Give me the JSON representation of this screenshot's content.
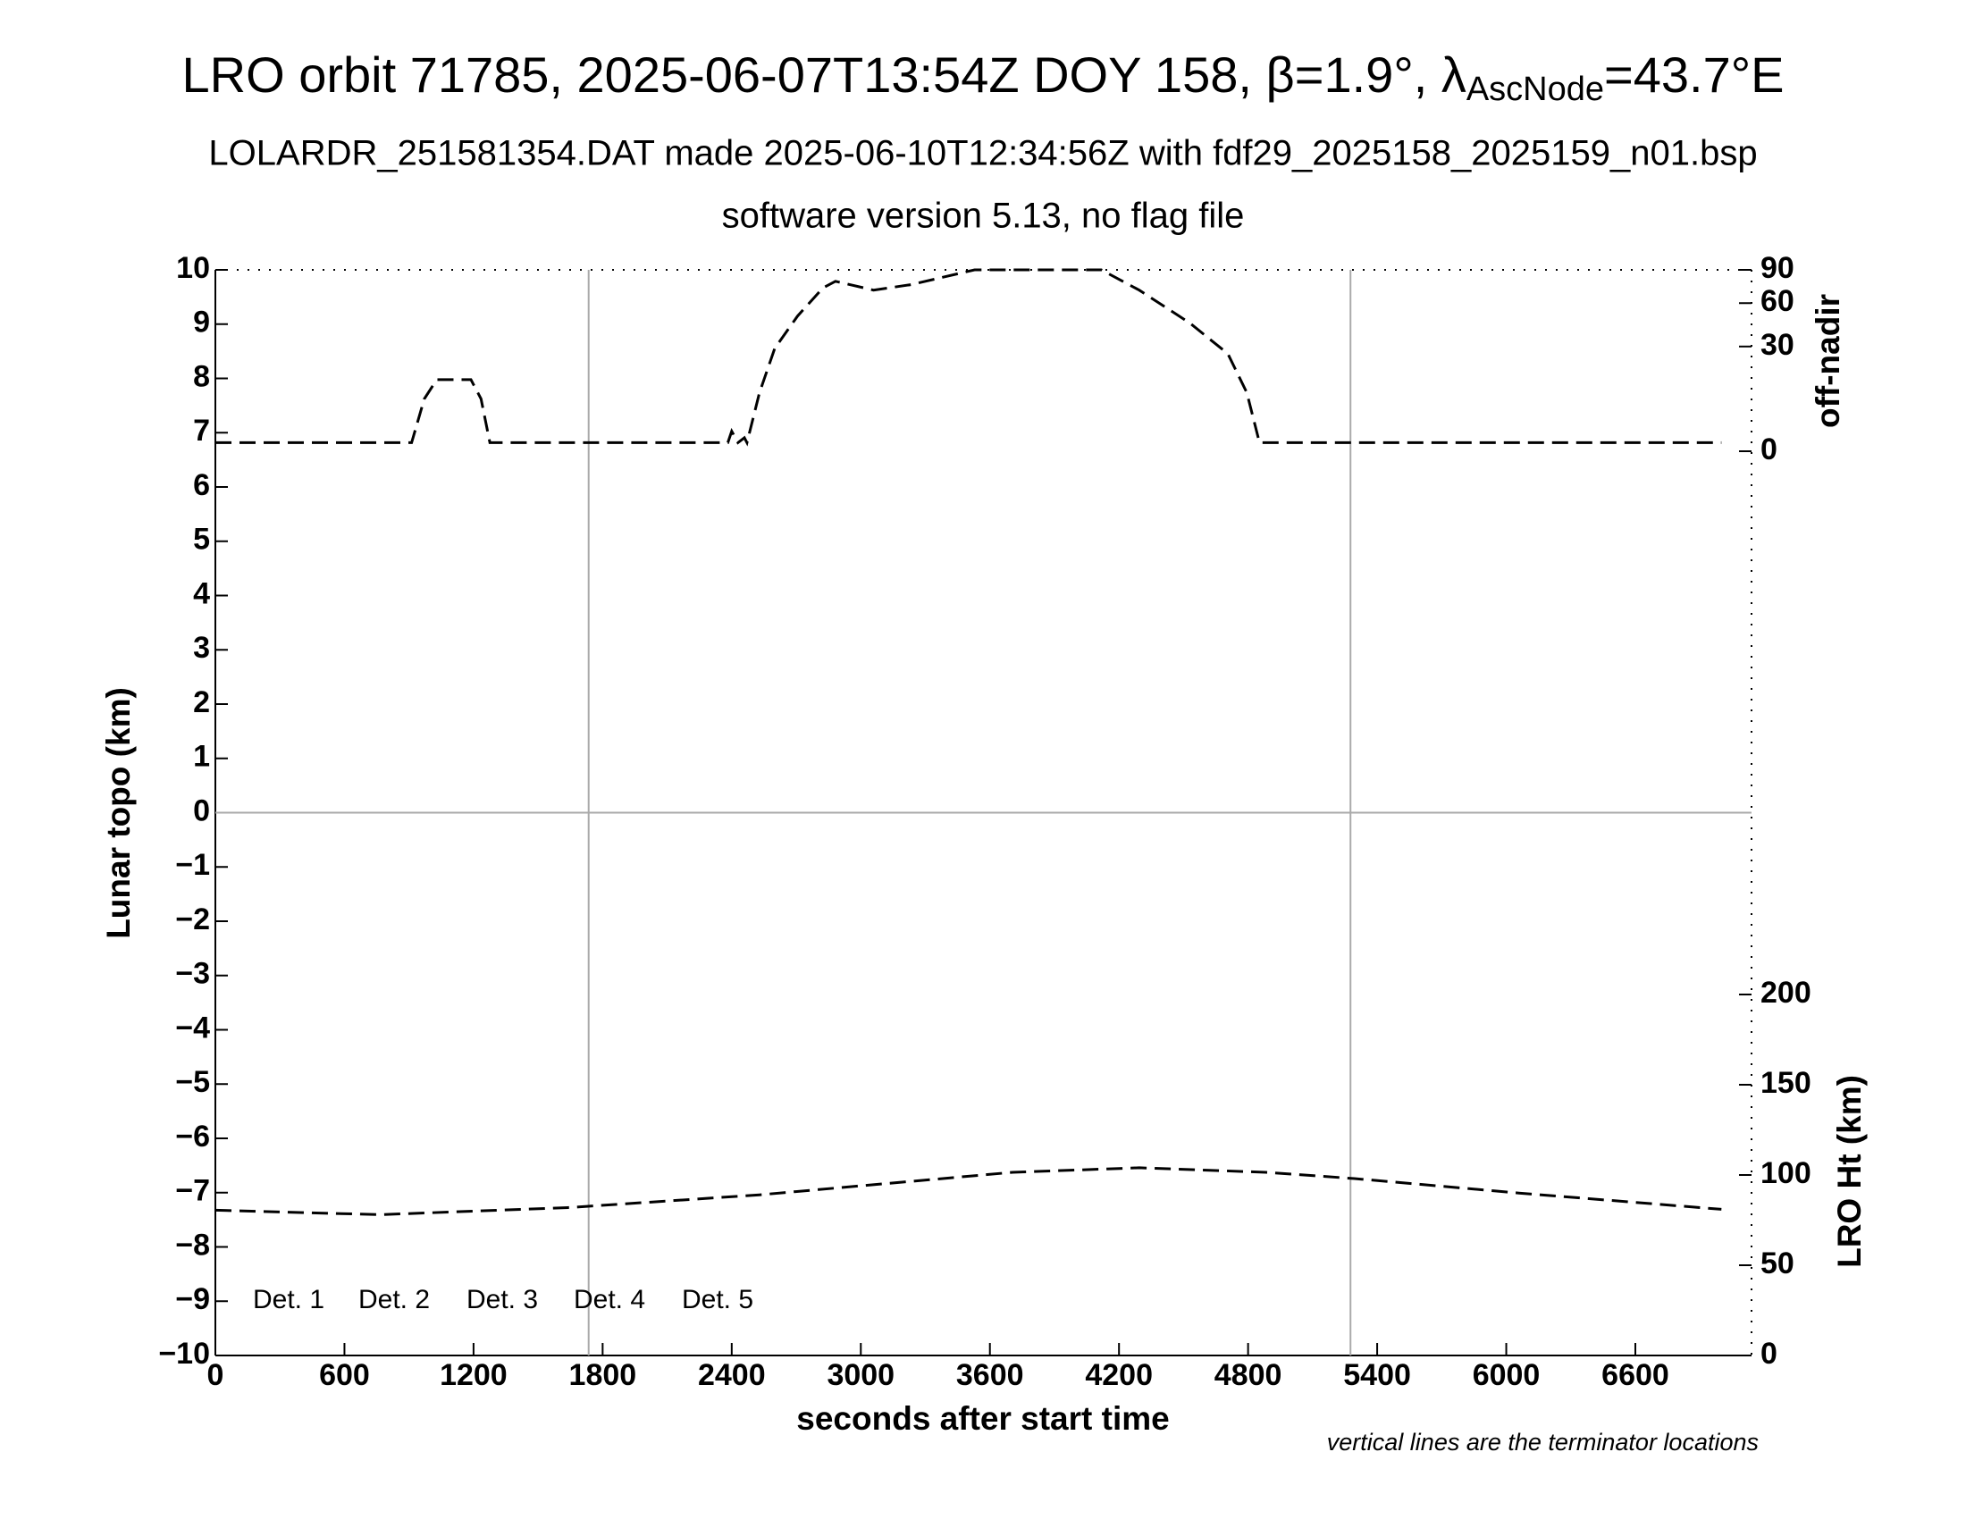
{
  "chart_data": {
    "type": "line",
    "title": [
      "LRO orbit 71785, 2025-06-07T13:54Z DOY 158, β=1.9°, λ",
      "AscNode",
      "=43.7°E"
    ],
    "subtitle": "LOLARDR_251581354.DAT made 2025-06-10T12:34:56Z with fdf29_2025158_2025159_n01.bsp",
    "subtitle2": "software version 5.13, no flag file",
    "xlabel": "seconds after start time",
    "ylabel": "Lunar topo (km)",
    "y2label": "off-nadir",
    "y3label": "LRO Ht (km)",
    "note": "vertical lines are the terminator locations",
    "xlim": [
      0,
      7140
    ],
    "xticks": [
      0,
      600,
      1200,
      1800,
      2400,
      3000,
      3600,
      4200,
      4800,
      5400,
      6000,
      6600
    ],
    "ylim": [
      -10,
      10
    ],
    "yticks": [
      {
        "value": -10,
        "label": "−10"
      },
      {
        "value": -9,
        "label": "−9"
      },
      {
        "value": -8,
        "label": "−8"
      },
      {
        "value": -7,
        "label": "−7"
      },
      {
        "value": -6,
        "label": "−6"
      },
      {
        "value": -5,
        "label": "−5"
      },
      {
        "value": -4,
        "label": "−4"
      },
      {
        "value": -3,
        "label": "−3"
      },
      {
        "value": -2,
        "label": "−2"
      },
      {
        "value": -1,
        "label": "−1"
      },
      0,
      1,
      2,
      3,
      4,
      5,
      6,
      7,
      8,
      9,
      10
    ],
    "y2lim": [
      0,
      90
    ],
    "y2scale": "sqrt",
    "y2ticks": [
      0,
      30,
      60,
      90
    ],
    "y3lim": [
      0,
      200
    ],
    "y3ticks": [
      0,
      50,
      100,
      150,
      200
    ],
    "terminators": [
      1735,
      5276
    ],
    "series": [
      {
        "axis": "y2",
        "color": "#000000",
        "x": [
          0,
          912,
          971,
          1029,
          1118,
          1188,
          1235,
          1276,
          2382,
          2400,
          2429,
          2459,
          2471,
          2529,
          2600,
          2706,
          2824,
          2882,
          3059,
          3235,
          3529,
          4118,
          4294,
          4529,
          4706,
          4794,
          4853,
          7000
        ],
        "values": [
          0.2,
          0.2,
          7.5,
          14,
          14,
          14,
          7.5,
          0.2,
          0.2,
          1.1,
          0.2,
          0.5,
          0.2,
          9.4,
          29,
          50,
          73,
          79,
          71,
          76,
          90,
          90,
          71,
          45,
          26,
          9.4,
          0.2,
          0.2
        ]
      },
      {
        "axis": "y3",
        "color": "#000000",
        "x": [
          0,
          765,
          1647,
          2529,
          3706,
          4294,
          4882,
          5294,
          6059,
          7000
        ],
        "values": [
          80.5,
          78,
          82,
          89,
          101.5,
          104,
          101.5,
          98,
          90,
          81
        ]
      }
    ],
    "legend": [
      {
        "name": "Det. 1",
        "color": "#000000"
      },
      {
        "name": "Det. 2",
        "color": "#0000ff"
      },
      {
        "name": "Det. 3",
        "color": "#00ee00"
      },
      {
        "name": "Det. 4",
        "color": "#ffa500"
      },
      {
        "name": "Det. 5",
        "color": "#ff0000"
      }
    ]
  }
}
